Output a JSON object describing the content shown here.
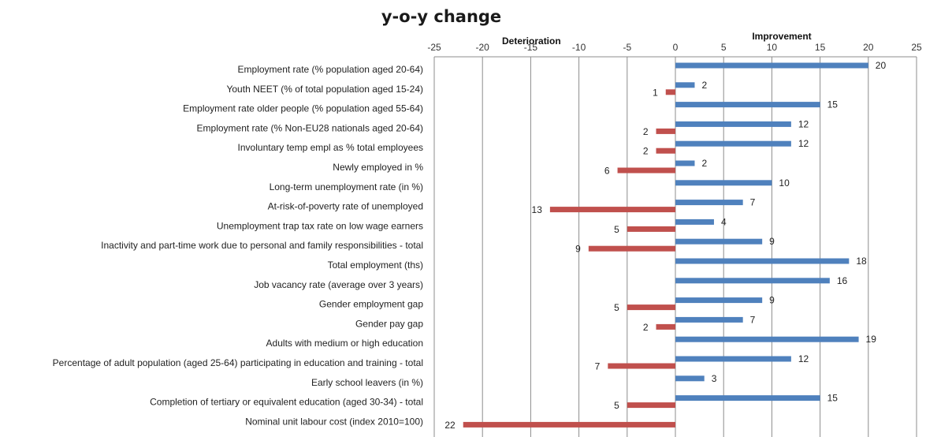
{
  "chart_data": {
    "type": "bar",
    "orientation": "horizontal",
    "title": "y-o-y change",
    "region_labels": {
      "negative": "Deterioration",
      "positive": "Improvement"
    },
    "xlim": [
      -25,
      25
    ],
    "xticks": [
      -25,
      -20,
      -15,
      -10,
      -5,
      0,
      5,
      10,
      15,
      20,
      25
    ],
    "grid": true,
    "legend": "none",
    "categories": [
      "Employment rate (% population aged 20-64)",
      "Youth NEET (% of total population aged 15-24)",
      "Employment rate older people (% population aged 55-64)",
      "Employment rate (% Non-EU28 nationals aged 20-64)",
      "Involuntary temp empl as % total employees",
      "Newly employed in %",
      "Long-term unemployment rate (in %)",
      "At-risk-of-poverty rate of unemployed",
      "Unemployment trap tax rate on low wage earners",
      "Inactivity and part-time work due to personal and family responsibilities - total",
      "Total employment (ths)",
      "Job vacancy rate (average over 3 years)",
      "Gender employment gap",
      "Gender pay gap",
      "Adults with medium or high education",
      "Percentage of adult population (aged 25-64) participating in education and training - total",
      "Early school leavers (in %)",
      "Completion of tertiary or equivalent education (aged 30-34) - total",
      "Nominal unit labour cost (index 2010=100)"
    ],
    "series": [
      {
        "color": "#4f81bd",
        "values": [
          20,
          2,
          15,
          12,
          12,
          2,
          10,
          7,
          4,
          9,
          18,
          16,
          9,
          7,
          19,
          12,
          3,
          15,
          0
        ],
        "labels": [
          "20",
          "2",
          "15",
          "12",
          "12",
          "2",
          "10",
          "7",
          "4",
          "9",
          "18",
          "16",
          "9",
          "7",
          "19",
          "12",
          "3",
          "15",
          ""
        ]
      },
      {
        "color": "#c0504d",
        "values": [
          0,
          -1,
          0,
          -2,
          -2,
          -6,
          0,
          -13,
          -5,
          -9,
          0,
          0,
          -5,
          -2,
          0,
          -7,
          0,
          -5,
          -22
        ],
        "labels": [
          "",
          "1",
          "",
          "2",
          "2",
          "6",
          "",
          "13",
          "5",
          "9",
          "",
          "",
          "5",
          "2",
          "",
          "7",
          "",
          "5",
          "22"
        ]
      }
    ]
  }
}
